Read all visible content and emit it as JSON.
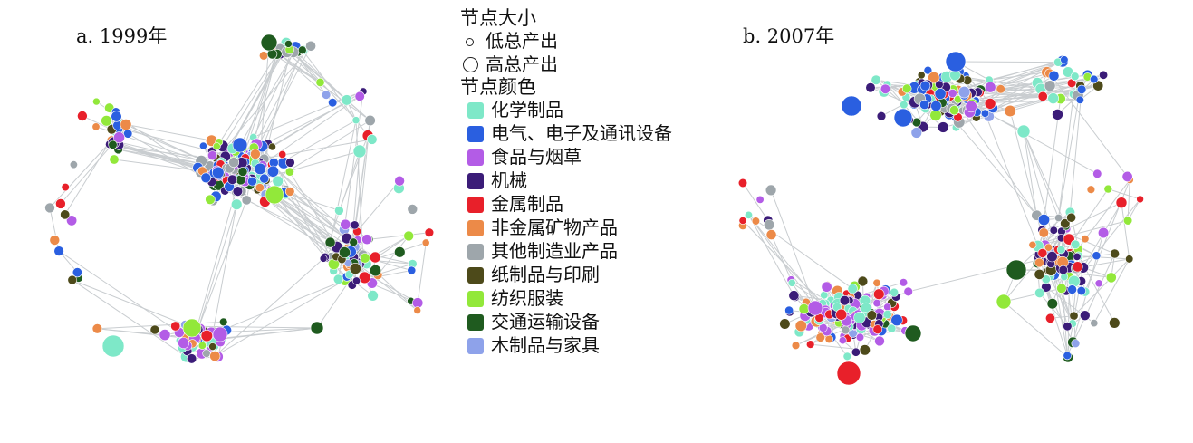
{
  "panels": [
    {
      "title": "a. 1999年"
    },
    {
      "title": "b. 2007年"
    }
  ],
  "legend": {
    "size_title": "节点大小",
    "size_items": [
      {
        "label": "低总产出",
        "level": "low"
      },
      {
        "label": "高总产出",
        "level": "high"
      }
    ],
    "color_title": "节点颜色",
    "categories": [
      {
        "label": "化学制品",
        "color": "#7ee8c8"
      },
      {
        "label": "电气、电子及通讯设备",
        "color": "#2a5fe0"
      },
      {
        "label": "食品与烟草",
        "color": "#b35ce6"
      },
      {
        "label": "机械",
        "color": "#3b1c78"
      },
      {
        "label": "金属制品",
        "color": "#e8202a"
      },
      {
        "label": "非金属矿物产品",
        "color": "#ec8a48"
      },
      {
        "label": "其他制造业产品",
        "color": "#9ea6ab"
      },
      {
        "label": "纸制品与印刷",
        "color": "#4d4a1a"
      },
      {
        "label": "纺织服装",
        "color": "#92e83a"
      },
      {
        "label": "交通运输设备",
        "color": "#1f5b1f"
      },
      {
        "label": "木制品与家具",
        "color": "#8ea2ea"
      }
    ]
  }
}
